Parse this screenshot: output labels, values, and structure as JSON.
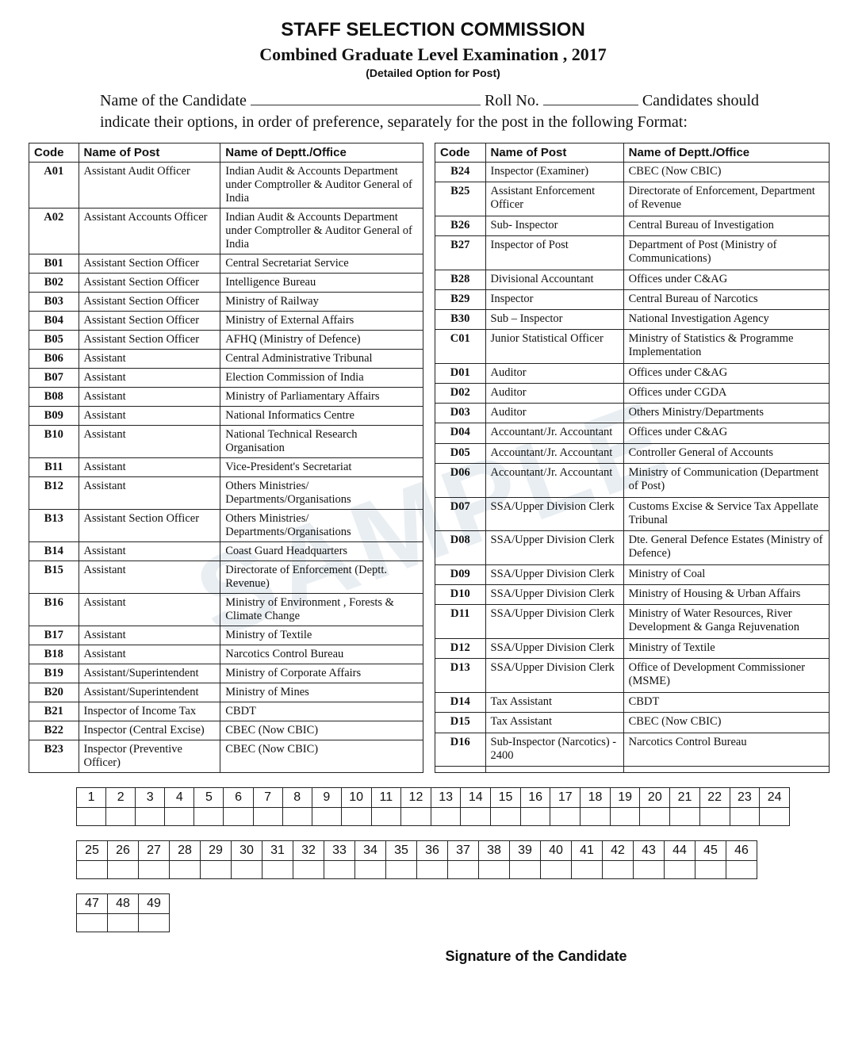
{
  "watermark_text": "SAMPLE",
  "header": {
    "title1": "STAFF SELECTION COMMISSION",
    "title2": "Combined Graduate Level  Examination , 2017",
    "title3": "(Detailed Option for Post)"
  },
  "intro": {
    "name_label": "Name of the Candidate",
    "roll_label": "Roll No.",
    "tail": " Candidates should indicate their options, in order of preference, separately for the post in the following Format:"
  },
  "columns": {
    "code": "Code",
    "post": "Name of Post",
    "dept": "Name of Deptt./Office"
  },
  "left_rows": [
    {
      "code": "A01",
      "post": "Assistant Audit Officer",
      "dept": "Indian Audit & Accounts Department under Comptroller & Auditor General of India"
    },
    {
      "code": "A02",
      "post": "Assistant Accounts Officer",
      "dept": "Indian Audit & Accounts Department under Comptroller & Auditor General of India"
    },
    {
      "code": "B01",
      "post": "Assistant Section Officer",
      "dept": "Central Secretariat Service"
    },
    {
      "code": "B02",
      "post": "Assistant Section Officer",
      "dept": "Intelligence Bureau"
    },
    {
      "code": "B03",
      "post": "Assistant Section Officer",
      "dept": "Ministry of Railway"
    },
    {
      "code": "B04",
      "post": "Assistant Section Officer",
      "dept": "Ministry of External Affairs"
    },
    {
      "code": "B05",
      "post": "Assistant Section Officer",
      "dept": "AFHQ  (Ministry of Defence)"
    },
    {
      "code": "B06",
      "post": "Assistant",
      "dept": "Central Administrative Tribunal"
    },
    {
      "code": "B07",
      "post": "Assistant",
      "dept": "Election Commission of India"
    },
    {
      "code": "B08",
      "post": "Assistant",
      "dept": "Ministry of Parliamentary Affairs"
    },
    {
      "code": "B09",
      "post": "Assistant",
      "dept": "National Informatics Centre"
    },
    {
      "code": "B10",
      "post": "Assistant",
      "dept": "National Technical Research Organisation"
    },
    {
      "code": "B11",
      "post": "Assistant",
      "dept": "Vice-President's Secretariat"
    },
    {
      "code": "B12",
      "post": "Assistant",
      "dept": "Others Ministries/ Departments/Organisations"
    },
    {
      "code": "B13",
      "post": "Assistant Section Officer",
      "dept": "Others Ministries/ Departments/Organisations"
    },
    {
      "code": "B14",
      "post": "Assistant",
      "dept": "Coast Guard Headquarters"
    },
    {
      "code": "B15",
      "post": "Assistant",
      "dept": "Directorate of Enforcement (Deptt. Revenue)"
    },
    {
      "code": "B16",
      "post": "Assistant",
      "dept": "Ministry of Environment , Forests & Climate Change"
    },
    {
      "code": "B17",
      "post": "Assistant",
      "dept": "Ministry of Textile"
    },
    {
      "code": "B18",
      "post": "Assistant",
      "dept": "Narcotics Control Bureau"
    },
    {
      "code": "B19",
      "post": "Assistant/Superintendent",
      "dept": "Ministry of Corporate Affairs"
    },
    {
      "code": "B20",
      "post": "Assistant/Superintendent",
      "dept": "Ministry of Mines"
    },
    {
      "code": "B21",
      "post": "Inspector of Income Tax",
      "dept": "CBDT"
    },
    {
      "code": "B22",
      "post": "Inspector (Central Excise)",
      "dept": "CBEC (Now CBIC)"
    },
    {
      "code": "B23",
      "post": "Inspector (Preventive Officer)",
      "dept": "CBEC (Now CBIC)"
    }
  ],
  "right_rows": [
    {
      "code": "B24",
      "post": "Inspector (Examiner)",
      "dept": "CBEC (Now CBIC)"
    },
    {
      "code": "B25",
      "post": "Assistant Enforcement Officer",
      "dept": "Directorate of Enforcement, Department of Revenue"
    },
    {
      "code": "B26",
      "post": "Sub- Inspector",
      "dept": "Central Bureau of Investigation"
    },
    {
      "code": "B27",
      "post": "Inspector of Post",
      "dept": "Department of Post  (Ministry of Communications)"
    },
    {
      "code": "B28",
      "post": "Divisional Accountant",
      "dept": "Offices under C&AG"
    },
    {
      "code": "B29",
      "post": "Inspector",
      "dept": "Central Bureau of Narcotics"
    },
    {
      "code": "B30",
      "post": "Sub – Inspector",
      "dept": "National Investigation Agency"
    },
    {
      "code": "C01",
      "post": "Junior Statistical Officer",
      "dept": "Ministry of Statistics & Programme Implementation"
    },
    {
      "code": "D01",
      "post": "Auditor",
      "dept": "Offices under C&AG"
    },
    {
      "code": "D02",
      "post": "Auditor",
      "dept": "Offices under CGDA"
    },
    {
      "code": "D03",
      "post": "Auditor",
      "dept": "Others Ministry/Departments"
    },
    {
      "code": "D04",
      "post": "Accountant/Jr. Accountant",
      "dept": "Offices under C&AG"
    },
    {
      "code": "D05",
      "post": "Accountant/Jr. Accountant",
      "dept": "Controller General of Accounts"
    },
    {
      "code": "D06",
      "post": "Accountant/Jr. Accountant",
      "dept": "Ministry of Communication (Department of Post)"
    },
    {
      "code": "D07",
      "post": "SSA/Upper Division Clerk",
      "dept": "Customs Excise & Service Tax Appellate Tribunal"
    },
    {
      "code": "D08",
      "post": "SSA/Upper Division Clerk",
      "dept": "Dte. General Defence Estates (Ministry of Defence)"
    },
    {
      "code": "D09",
      "post": "SSA/Upper Division Clerk",
      "dept": "Ministry of Coal"
    },
    {
      "code": "D10",
      "post": "SSA/Upper Division Clerk",
      "dept": "Ministry of Housing & Urban Affairs"
    },
    {
      "code": "D11",
      "post": "SSA/Upper Division Clerk",
      "dept": "Ministry of Water Resources, River Development & Ganga Rejuvenation"
    },
    {
      "code": "D12",
      "post": "SSA/Upper Division Clerk",
      "dept": "Ministry of Textile"
    },
    {
      "code": "D13",
      "post": "SSA/Upper Division Clerk",
      "dept": "Office of Development Commissioner (MSME)"
    },
    {
      "code": "D14",
      "post": "Tax Assistant",
      "dept": "CBDT"
    },
    {
      "code": "D15",
      "post": "Tax Assistant",
      "dept": "CBEC (Now CBIC)"
    },
    {
      "code": "D16",
      "post": "Sub-Inspector (Narcotics) - 2400",
      "dept": "Narcotics Control Bureau"
    },
    {
      "code": "",
      "post": "",
      "dept": ""
    }
  ],
  "preference_grid": {
    "row1": [
      "1",
      "2",
      "3",
      "4",
      "5",
      "6",
      "7",
      "8",
      "9",
      "10",
      "11",
      "12",
      "13",
      "14",
      "15",
      "16",
      "17",
      "18",
      "19",
      "20",
      "21",
      "22",
      "23",
      "24"
    ],
    "row2": [
      "25",
      "26",
      "27",
      "28",
      "29",
      "30",
      "31",
      "32",
      "33",
      "34",
      "35",
      "36",
      "37",
      "38",
      "39",
      "40",
      "41",
      "42",
      "43",
      "44",
      "45",
      "46"
    ],
    "row3": [
      "47",
      "48",
      "49"
    ]
  },
  "signature_label": "Signature of the Candidate"
}
